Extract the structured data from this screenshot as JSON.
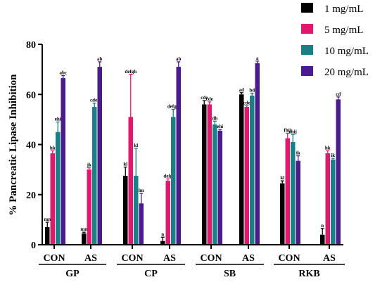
{
  "chart_data": {
    "type": "bar",
    "ylabel": "% Pancreatic Lipase Inhibition",
    "ylim": [
      0,
      80
    ],
    "yticks": [
      0,
      20,
      40,
      60,
      80
    ],
    "groups": [
      {
        "label": "GP",
        "subgroups": [
          "CON",
          "AS"
        ]
      },
      {
        "label": "CP",
        "subgroups": [
          "CON",
          "AS"
        ]
      },
      {
        "label": "SB",
        "subgroups": [
          "CON",
          "AS"
        ]
      },
      {
        "label": "RKB",
        "subgroups": [
          "CON",
          "AS"
        ]
      }
    ],
    "categories": [
      "GP CON",
      "GP AS",
      "CP CON",
      "CP AS",
      "SB CON",
      "SB AS",
      "RKB CON",
      "RKB AS"
    ],
    "colors": [
      "#000000",
      "#e0196e",
      "#1a7f86",
      "#4b1a8c"
    ],
    "series": [
      {
        "name": "1 mg/mL",
        "values": [
          7,
          4.5,
          27.5,
          1.5,
          56,
          60,
          24.5,
          4
        ],
        "errors": [
          2,
          0.5,
          3.5,
          1.5,
          1.5,
          0.7,
          1,
          2.5
        ],
        "labels": [
          "mn",
          "mn",
          "kl",
          "n",
          "cde",
          "ad",
          "kl",
          "n"
        ]
      },
      {
        "name": "5 mg/mL",
        "values": [
          36.5,
          30,
          51,
          25.5,
          56,
          55,
          42.5,
          36.5
        ],
        "errors": [
          1,
          0.7,
          17,
          0.8,
          1,
          0.5,
          2,
          1
        ],
        "labels": [
          "hk",
          "jk",
          "defgh",
          "defg",
          "cde",
          "cde",
          "fhij",
          "hk"
        ]
      },
      {
        "name": "10 mg/mL",
        "values": [
          45,
          55,
          27.5,
          51,
          48,
          59.5,
          41,
          34
        ],
        "errors": [
          4,
          1.5,
          11,
          3,
          1.3,
          1,
          3,
          0.5
        ],
        "labels": [
          "ehi",
          "cdef",
          "kl",
          "defgh",
          "dh",
          "bd",
          "ehij",
          "ik"
        ]
      },
      {
        "name": "20 mg/mL",
        "values": [
          66.5,
          71,
          16.5,
          71,
          45.5,
          72.5,
          33.5,
          58
        ],
        "errors": [
          1,
          2,
          4,
          2,
          0.5,
          0.8,
          2,
          1
        ],
        "labels": [
          "abc",
          "ab",
          "lm",
          "ab",
          "ehi",
          "a",
          "ik",
          "cd"
        ]
      }
    ],
    "legend_position": "top-right",
    "grid": false
  }
}
